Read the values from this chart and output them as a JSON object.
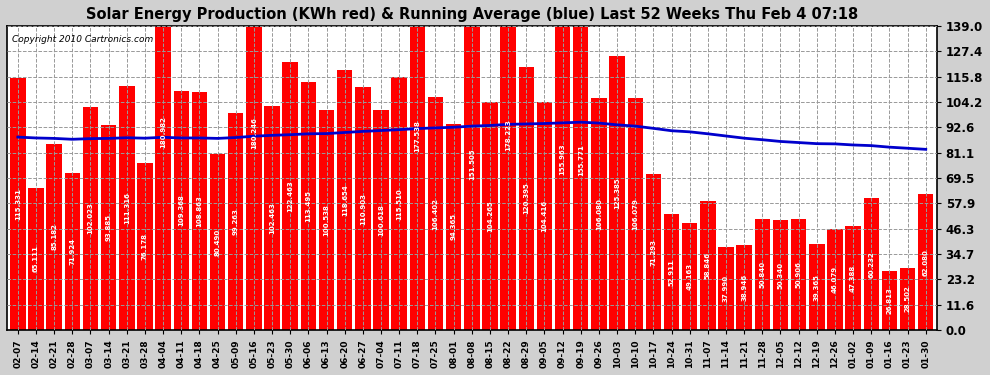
{
  "title": "Solar Energy Production (KWh red) & Running Average (blue) Last 52 Weeks Thu Feb 4 07:18",
  "copyright": "Copyright 2010 Cartronics.com",
  "bar_color": "#FF0000",
  "avg_line_color": "#0000CC",
  "background_color": "#D0D0D0",
  "plot_bg_color": "#FFFFFF",
  "grid_color": "#999999",
  "ylim": [
    0.0,
    139.0
  ],
  "yticks": [
    0.0,
    11.6,
    23.2,
    34.7,
    46.3,
    57.9,
    69.5,
    81.1,
    92.6,
    104.2,
    115.8,
    127.4,
    139.0
  ],
  "dates": [
    "02-07",
    "02-14",
    "02-21",
    "02-28",
    "03-07",
    "03-14",
    "03-21",
    "03-28",
    "04-04",
    "04-11",
    "04-18",
    "04-25",
    "05-09",
    "05-16",
    "05-23",
    "05-30",
    "06-06",
    "06-13",
    "06-20",
    "06-27",
    "07-04",
    "07-11",
    "07-18",
    "07-25",
    "08-01",
    "08-08",
    "08-15",
    "08-22",
    "08-29",
    "09-05",
    "09-12",
    "09-19",
    "09-26",
    "10-03",
    "10-10",
    "10-17",
    "10-24",
    "10-31",
    "11-07",
    "11-14",
    "11-21",
    "11-28",
    "12-05",
    "12-12",
    "12-19",
    "12-26",
    "01-02",
    "01-09",
    "01-16",
    "01-23",
    "01-30"
  ],
  "values": [
    115.331,
    65.111,
    85.182,
    71.924,
    102.023,
    93.885,
    111.316,
    76.178,
    180.982,
    109.368,
    108.863,
    80.49,
    99.263,
    180.246,
    102.463,
    122.463,
    113.495,
    100.538,
    118.654,
    110.903,
    100.618,
    115.51,
    177.538,
    106.402,
    94.365,
    151.505,
    104.265,
    178.223,
    120.395,
    104.416,
    155.963,
    155.771,
    106.08,
    125.385,
    106.079,
    71.293,
    52.911,
    49.163,
    58.846,
    37.99,
    38.946,
    50.84,
    50.34,
    50.906,
    39.365,
    46.079,
    47.388,
    60.232,
    26.813,
    28.502,
    62.08
  ],
  "avg_values": [
    88.2,
    87.8,
    87.6,
    87.2,
    87.5,
    87.6,
    87.9,
    87.7,
    88.1,
    87.8,
    87.8,
    87.6,
    88.0,
    88.6,
    89.0,
    89.3,
    89.7,
    89.8,
    90.3,
    90.8,
    91.2,
    91.6,
    92.1,
    92.4,
    92.7,
    93.2,
    93.5,
    94.0,
    94.2,
    94.4,
    94.7,
    95.0,
    94.6,
    93.8,
    93.2,
    92.2,
    91.1,
    90.6,
    89.7,
    88.7,
    87.7,
    87.0,
    86.2,
    85.7,
    85.2,
    85.1,
    84.6,
    84.3,
    83.6,
    83.1,
    82.6
  ]
}
